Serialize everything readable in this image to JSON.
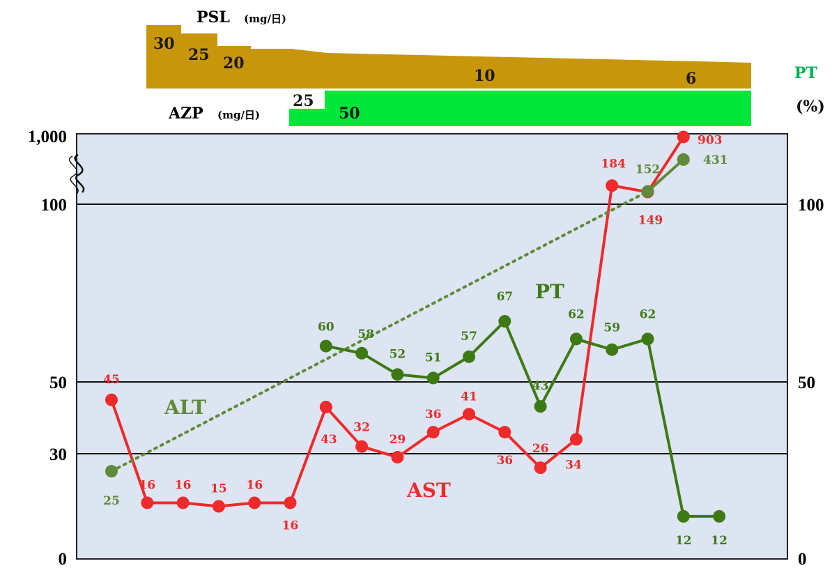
{
  "colors": {
    "psl": "#c8960a",
    "azp": "#00e639",
    "plot_bg": "#dde4f2",
    "ast": "#ee2a2a",
    "alt": "#5f8a3a",
    "pt": "#3d7a14",
    "pt_axis_title": "#00b050"
  },
  "psl": {
    "title": "PSL",
    "unit": "(mg/日)",
    "doses": [
      "30",
      "25",
      "20",
      "10",
      "6"
    ]
  },
  "azp": {
    "title": "AZP",
    "unit": "(mg/日)",
    "doses": [
      "25",
      "50"
    ]
  },
  "axes": {
    "left_ticks": [
      "1,000",
      "100",
      "50",
      "30",
      "0"
    ],
    "right_title_top": "PT",
    "right_title_bottom": "(%)",
    "right_ticks": [
      "100",
      "50",
      "0"
    ]
  },
  "series_labels": {
    "ast": "AST",
    "alt": "ALT",
    "pt": "PT"
  },
  "chart_data": {
    "type": "line",
    "left_axis": {
      "scale": "broken",
      "ticks": [
        0,
        30,
        50,
        100,
        1000
      ]
    },
    "right_axis": {
      "title": "PT (%)",
      "ticks": [
        0,
        50,
        100
      ]
    },
    "series": [
      {
        "name": "AST",
        "axis": "left",
        "points": [
          {
            "x": 1,
            "y": 45
          },
          {
            "x": 2,
            "y": 16
          },
          {
            "x": 3,
            "y": 16
          },
          {
            "x": 4,
            "y": 15
          },
          {
            "x": 5,
            "y": 16
          },
          {
            "x": 6,
            "y": 16
          },
          {
            "x": 7,
            "y": 43
          },
          {
            "x": 8,
            "y": 32
          },
          {
            "x": 9,
            "y": 29
          },
          {
            "x": 10,
            "y": 36
          },
          {
            "x": 11,
            "y": 41
          },
          {
            "x": 12,
            "y": 36
          },
          {
            "x": 13,
            "y": 26
          },
          {
            "x": 14,
            "y": 34
          },
          {
            "x": 15,
            "y": 184
          },
          {
            "x": 16,
            "y": 149
          },
          {
            "x": 17,
            "y": 903
          }
        ]
      },
      {
        "name": "ALT",
        "axis": "left",
        "points": [
          {
            "x": 1,
            "y": 25
          },
          {
            "x": 16,
            "y": 152
          },
          {
            "x": 17,
            "y": 431
          }
        ]
      },
      {
        "name": "PT",
        "axis": "right",
        "points": [
          {
            "x": 7,
            "y": 60
          },
          {
            "x": 8,
            "y": 58
          },
          {
            "x": 9,
            "y": 52
          },
          {
            "x": 10,
            "y": 51
          },
          {
            "x": 11,
            "y": 57
          },
          {
            "x": 12,
            "y": 67
          },
          {
            "x": 13,
            "y": 43
          },
          {
            "x": 14,
            "y": 62
          },
          {
            "x": 15,
            "y": 59
          },
          {
            "x": 16,
            "y": 62
          },
          {
            "x": 17,
            "y": 12
          },
          {
            "x": 18,
            "y": 12
          }
        ]
      }
    ]
  }
}
